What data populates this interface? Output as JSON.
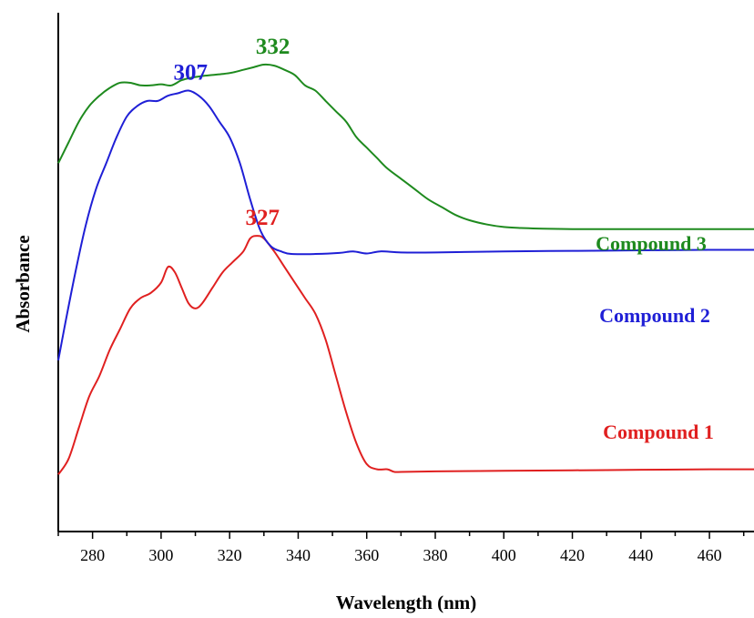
{
  "chart_data": {
    "type": "line",
    "title": "",
    "xlabel": "Wavelength (nm)",
    "ylabel": "Absorbance",
    "xlim": [
      270,
      473
    ],
    "ylim": [
      0,
      1
    ],
    "x_ticks": [
      280,
      300,
      320,
      340,
      360,
      380,
      400,
      420,
      440,
      460
    ],
    "y_ticks_shown": false,
    "grid": false,
    "legend": "none",
    "series": [
      {
        "name": "Compound 1",
        "color": "#e02020",
        "peak_label": "327",
        "peak_x": 328,
        "points": [
          [
            270,
            0.11
          ],
          [
            273,
            0.14
          ],
          [
            276,
            0.2
          ],
          [
            279,
            0.26
          ],
          [
            282,
            0.3
          ],
          [
            285,
            0.35
          ],
          [
            288,
            0.39
          ],
          [
            291,
            0.43
          ],
          [
            294,
            0.45
          ],
          [
            297,
            0.46
          ],
          [
            300,
            0.48
          ],
          [
            302,
            0.51
          ],
          [
            304,
            0.5
          ],
          [
            306,
            0.47
          ],
          [
            308,
            0.44
          ],
          [
            310,
            0.43
          ],
          [
            312,
            0.44
          ],
          [
            315,
            0.47
          ],
          [
            318,
            0.5
          ],
          [
            321,
            0.52
          ],
          [
            324,
            0.54
          ],
          [
            326,
            0.565
          ],
          [
            328,
            0.57
          ],
          [
            330,
            0.565
          ],
          [
            333,
            0.54
          ],
          [
            336,
            0.51
          ],
          [
            339,
            0.48
          ],
          [
            342,
            0.45
          ],
          [
            345,
            0.42
          ],
          [
            348,
            0.37
          ],
          [
            351,
            0.3
          ],
          [
            354,
            0.23
          ],
          [
            357,
            0.17
          ],
          [
            360,
            0.13
          ],
          [
            363,
            0.12
          ],
          [
            366,
            0.12
          ],
          [
            368,
            0.115
          ],
          [
            370,
            0.115
          ],
          [
            380,
            0.116
          ],
          [
            400,
            0.117
          ],
          [
            420,
            0.118
          ],
          [
            440,
            0.119
          ],
          [
            460,
            0.12
          ],
          [
            473,
            0.12
          ]
        ]
      },
      {
        "name": "Compound 2",
        "color": "#1f1fd6",
        "peak_label": "307",
        "peak_x": 307,
        "points": [
          [
            270,
            0.33
          ],
          [
            272,
            0.4
          ],
          [
            275,
            0.5
          ],
          [
            278,
            0.59
          ],
          [
            281,
            0.66
          ],
          [
            284,
            0.71
          ],
          [
            287,
            0.76
          ],
          [
            290,
            0.8
          ],
          [
            293,
            0.82
          ],
          [
            296,
            0.83
          ],
          [
            299,
            0.83
          ],
          [
            302,
            0.84
          ],
          [
            305,
            0.845
          ],
          [
            308,
            0.85
          ],
          [
            311,
            0.84
          ],
          [
            314,
            0.82
          ],
          [
            317,
            0.79
          ],
          [
            320,
            0.76
          ],
          [
            323,
            0.71
          ],
          [
            326,
            0.64
          ],
          [
            329,
            0.58
          ],
          [
            332,
            0.55
          ],
          [
            335,
            0.54
          ],
          [
            338,
            0.535
          ],
          [
            345,
            0.535
          ],
          [
            352,
            0.537
          ],
          [
            356,
            0.54
          ],
          [
            360,
            0.536
          ],
          [
            364,
            0.54
          ],
          [
            370,
            0.538
          ],
          [
            380,
            0.538
          ],
          [
            400,
            0.54
          ],
          [
            420,
            0.541
          ],
          [
            440,
            0.542
          ],
          [
            460,
            0.543
          ],
          [
            473,
            0.543
          ]
        ]
      },
      {
        "name": "Compound 3",
        "color": "#1e8a1e",
        "peak_label": "332",
        "peak_x": 331,
        "points": [
          [
            270,
            0.71
          ],
          [
            273,
            0.75
          ],
          [
            276,
            0.79
          ],
          [
            279,
            0.82
          ],
          [
            282,
            0.84
          ],
          [
            285,
            0.855
          ],
          [
            288,
            0.865
          ],
          [
            291,
            0.865
          ],
          [
            294,
            0.86
          ],
          [
            297,
            0.86
          ],
          [
            300,
            0.862
          ],
          [
            303,
            0.86
          ],
          [
            306,
            0.87
          ],
          [
            309,
            0.875
          ],
          [
            312,
            0.878
          ],
          [
            315,
            0.88
          ],
          [
            318,
            0.882
          ],
          [
            321,
            0.885
          ],
          [
            324,
            0.89
          ],
          [
            327,
            0.895
          ],
          [
            330,
            0.9
          ],
          [
            333,
            0.898
          ],
          [
            336,
            0.89
          ],
          [
            339,
            0.88
          ],
          [
            342,
            0.86
          ],
          [
            345,
            0.85
          ],
          [
            348,
            0.83
          ],
          [
            351,
            0.81
          ],
          [
            354,
            0.79
          ],
          [
            357,
            0.76
          ],
          [
            360,
            0.74
          ],
          [
            363,
            0.72
          ],
          [
            366,
            0.7
          ],
          [
            370,
            0.68
          ],
          [
            374,
            0.66
          ],
          [
            378,
            0.64
          ],
          [
            382,
            0.625
          ],
          [
            386,
            0.61
          ],
          [
            390,
            0.6
          ],
          [
            395,
            0.592
          ],
          [
            400,
            0.587
          ],
          [
            405,
            0.585
          ],
          [
            410,
            0.584
          ],
          [
            420,
            0.583
          ],
          [
            440,
            0.583
          ],
          [
            460,
            0.583
          ],
          [
            473,
            0.583
          ]
        ]
      }
    ]
  }
}
